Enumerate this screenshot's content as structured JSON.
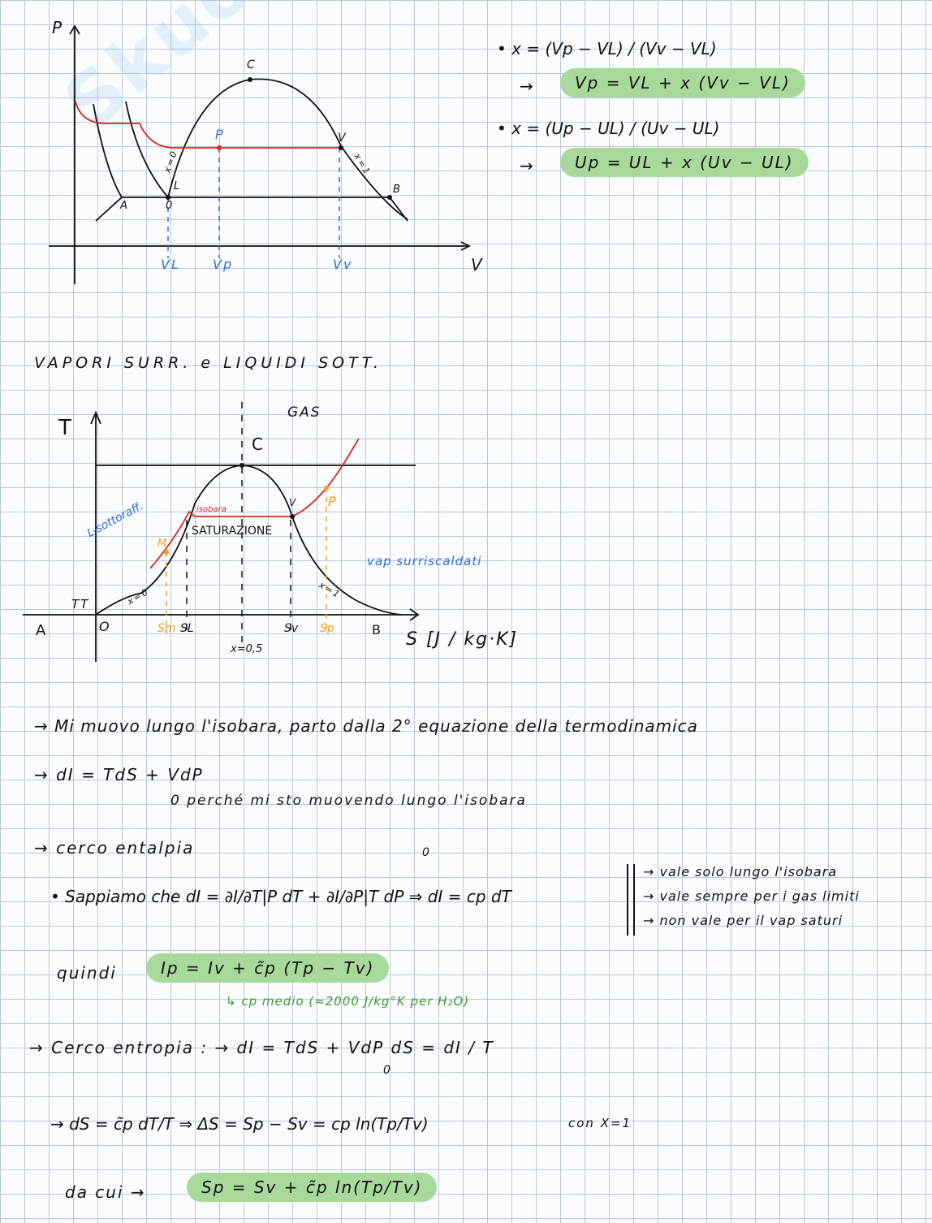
{
  "watermark": "Skuola.net il paradiso dello studente",
  "pv_diagram": {
    "labels": {
      "p_axis": "P",
      "v_axis": "V",
      "c": "C",
      "p": "P",
      "v": "V",
      "l": "L",
      "a": "A",
      "b": "B",
      "zero": "0",
      "x0": "x=0",
      "x1": "x=1",
      "vl": "VL",
      "vp": "Vp",
      "vv": "Vv"
    }
  },
  "formulas_top": [
    {
      "lhs": "• x = (Vp − VL) / (Vv − VL)",
      "arrow": "→",
      "result": "Vp = VL + x (Vv − VL)"
    },
    {
      "lhs": "• x = (Up − UL) / (Uv − UL)",
      "arrow": "→",
      "result": "Up = UL + x (Uv − UL)"
    }
  ],
  "section_title": "VAPORI SURR. e LIQUIDI SOTT.",
  "ts_diagram": {
    "labels": {
      "t_axis": "T",
      "s_axis": "S [J / kg·K]",
      "gas": "GAS",
      "c": "C",
      "isobara": "isobara",
      "saturazione": "SATURAZIONE",
      "l_sottoraff": "L-sottoraff.",
      "vap_surr": "vap surriscaldati",
      "v": "V",
      "p": "P",
      "m": "M",
      "tt": "TT",
      "a": "A",
      "o": "O",
      "b": "B",
      "x0": "x=0",
      "x1": "x=1",
      "x05": "x=0,5",
      "sm": "Sm",
      "sl": "SL",
      "sv": "Sv",
      "sp": "Sp"
    },
    "colors": {
      "isobar": "#d42a20",
      "annot_blue": "#2a6fd6",
      "points": "#f0a020"
    }
  },
  "notes": {
    "line1": "→ Mi muovo lungo l'isobara, parto dalla 2° equazione della termodinamica",
    "line2": "→ dI = TdS + VdP",
    "line2b": "0 perché mi sto muovendo lungo l'isobara",
    "line3": "→ cerco entalpia",
    "line4": "• Sappiamo che dI = ∂I/∂T|P dT + ∂I/∂P|T dP ⇒ dI = cp dT",
    "line4_zero": "0",
    "side": [
      "→ vale solo lungo l'isobara",
      "→ vale sempre per i gas limiti",
      "→ non vale per il vap saturi"
    ],
    "quindi": "quindi",
    "enthalpy_result": "Ip = Iv + c̃p (Tp − Tv)",
    "cp_note": "↳ cp medio  (≈2000 J/kg°K per H₂O)",
    "line5": "→ Cerco entropia : → dI = TdS + VdP      dS = dI / T",
    "line5_zero": "0",
    "line6": "→  dS = c̃p dT/T  ⇒  ΔS = Sp − Sv = cp ln(Tp/Tv)",
    "line6_note": "con X=1",
    "dacui": "da cui  →",
    "entropy_result": "Sp = Sv + c̃p ln(Tp/Tv)"
  }
}
